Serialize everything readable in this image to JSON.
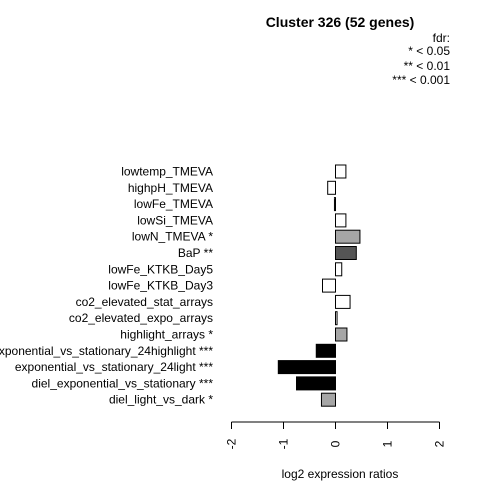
{
  "chart_data": {
    "type": "bar",
    "orientation": "horizontal",
    "title": "Cluster 326 (52 genes)",
    "xlabel": "log2 expression ratios",
    "ylabel": "",
    "xlim": [
      -2,
      2
    ],
    "xticks": [
      "-2",
      "-1",
      "0",
      "1",
      "2"
    ],
    "legend": {
      "title": "fdr:",
      "entries": [
        "* < 0.05",
        "** < 0.01",
        "*** < 0.001"
      ],
      "placement": "top-right"
    },
    "categories": [
      "lowtemp_TMEVA",
      "highpH_TMEVA",
      "lowFe_TMEVA",
      "lowSi_TMEVA",
      "lowN_TMEVA *",
      "BaP **",
      "lowFe_KTKB_Day5",
      "lowFe_KTKB_Day3",
      "co2_elevated_stat_arrays",
      "co2_elevated_expo_arrays",
      "highlight_arrays *",
      "exponential_vs_stationary_24highlight ***",
      "exponential_vs_stationary_24light ***",
      "diel_exponential_vs_stationary ***",
      "diel_light_vs_dark *"
    ],
    "values": [
      0.2,
      -0.15,
      -0.02,
      0.2,
      0.47,
      0.4,
      0.12,
      -0.25,
      0.28,
      0.03,
      0.22,
      -0.37,
      -1.1,
      -0.75,
      -0.27
    ],
    "fill_colors": [
      "#ffffff",
      "#ffffff",
      "#ffffff",
      "#ffffff",
      "#a6a6a6",
      "#555555",
      "#ffffff",
      "#ffffff",
      "#ffffff",
      "#ffffff",
      "#a6a6a6",
      "#000000",
      "#000000",
      "#000000",
      "#a6a6a6"
    ]
  }
}
